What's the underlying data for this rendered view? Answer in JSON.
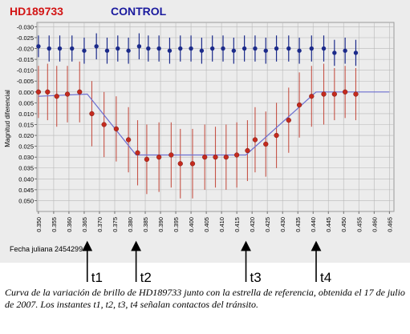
{
  "header": {
    "star_label": "HD189733",
    "control_label": "CONTROL"
  },
  "colors": {
    "star": "#c42a1e",
    "star_errbar": "#c0392b",
    "control": "#1b2a8a",
    "model": "#6d6fd0",
    "grid": "#b8b8b8",
    "plot_bg": "#ececec"
  },
  "caption": "Curva de la variación de brillo de HD189733 junto con la estrella de referencia, obtenida el 17 de julio de 2007. Los instantes t1, t2, t3, t4 señalan contactos del tránsito.",
  "chart_data": {
    "type": "scatter",
    "title": "",
    "ylabel": "Magnitud diferencial",
    "xlabel": "Fecha juliana 2454299 +",
    "ylim": [
      0.055,
      -0.032
    ],
    "xlim": [
      0.3495,
      0.4665
    ],
    "y_inverted": true,
    "grid": true,
    "x_ticks": [
      "0.350",
      "0.355",
      "0.360",
      "0.365",
      "0.370",
      "0.375",
      "0.380",
      "0.385",
      "0.390",
      "0.395",
      "0.400",
      "0.405",
      "0.410",
      "0.415",
      "0.420",
      "0.425",
      "0.430",
      "0.435",
      "0.440",
      "0.445",
      "0.450",
      "0.455",
      "0.460",
      "0.465"
    ],
    "y_ticks": [
      "-0.030",
      "-0.025",
      "-0.020",
      "-0.015",
      "-0.010",
      "-0.005",
      "0.000",
      "0.005",
      "0.010",
      "0.015",
      "0.020",
      "0.025",
      "0.030",
      "0.035",
      "0.040",
      "0.045",
      "0.050"
    ],
    "series": [
      {
        "name": "HD189733",
        "x": [
          0.35,
          0.353,
          0.356,
          0.3595,
          0.3635,
          0.3675,
          0.3715,
          0.3755,
          0.3795,
          0.3825,
          0.3855,
          0.3895,
          0.3935,
          0.3965,
          0.4005,
          0.4045,
          0.408,
          0.4115,
          0.415,
          0.4185,
          0.421,
          0.4245,
          0.428,
          0.432,
          0.4355,
          0.4395,
          0.4435,
          0.447,
          0.4505,
          0.454
        ],
        "y": [
          0.0,
          0.0,
          0.002,
          0.001,
          0.0,
          0.01,
          0.015,
          0.017,
          0.022,
          0.028,
          0.031,
          0.03,
          0.029,
          0.033,
          0.033,
          0.03,
          0.03,
          0.03,
          0.029,
          0.027,
          0.022,
          0.024,
          0.02,
          0.013,
          0.006,
          0.002,
          0.001,
          0.001,
          0.0,
          0.001
        ],
        "err": [
          0.012,
          0.013,
          0.014,
          0.013,
          0.014,
          0.015,
          0.015,
          0.015,
          0.015,
          0.015,
          0.016,
          0.016,
          0.015,
          0.016,
          0.016,
          0.015,
          0.014,
          0.015,
          0.015,
          0.014,
          0.015,
          0.015,
          0.015,
          0.015,
          0.015,
          0.014,
          0.014,
          0.012,
          0.012,
          0.012
        ]
      },
      {
        "name": "CONTROL",
        "x": [
          0.35,
          0.3535,
          0.357,
          0.361,
          0.365,
          0.369,
          0.3725,
          0.376,
          0.3795,
          0.383,
          0.386,
          0.3895,
          0.393,
          0.3965,
          0.4,
          0.4035,
          0.407,
          0.4105,
          0.414,
          0.4175,
          0.421,
          0.4245,
          0.428,
          0.432,
          0.4355,
          0.4395,
          0.4435,
          0.447,
          0.4505,
          0.454
        ],
        "y": [
          -0.021,
          -0.02,
          -0.02,
          -0.02,
          -0.019,
          -0.021,
          -0.019,
          -0.02,
          -0.019,
          -0.021,
          -0.02,
          -0.02,
          -0.019,
          -0.02,
          -0.02,
          -0.019,
          -0.02,
          -0.02,
          -0.019,
          -0.02,
          -0.02,
          -0.019,
          -0.02,
          -0.02,
          -0.019,
          -0.02,
          -0.02,
          -0.018,
          -0.019,
          -0.018
        ],
        "err": [
          0.005,
          0.006,
          0.006,
          0.006,
          0.006,
          0.006,
          0.006,
          0.006,
          0.006,
          0.006,
          0.006,
          0.006,
          0.006,
          0.006,
          0.006,
          0.006,
          0.006,
          0.006,
          0.006,
          0.006,
          0.006,
          0.006,
          0.006,
          0.006,
          0.006,
          0.006,
          0.006,
          0.006,
          0.006,
          0.006
        ]
      },
      {
        "name": "model",
        "x": [
          0.35,
          0.366,
          0.382,
          0.418,
          0.441,
          0.465
        ],
        "y": [
          0.002,
          0.001,
          0.029,
          0.029,
          0.0,
          0.0
        ]
      }
    ],
    "contact_markers": [
      {
        "label": "t1",
        "x": 0.366
      },
      {
        "label": "t2",
        "x": 0.382
      },
      {
        "label": "t3",
        "x": 0.418
      },
      {
        "label": "t4",
        "x": 0.441
      }
    ]
  }
}
